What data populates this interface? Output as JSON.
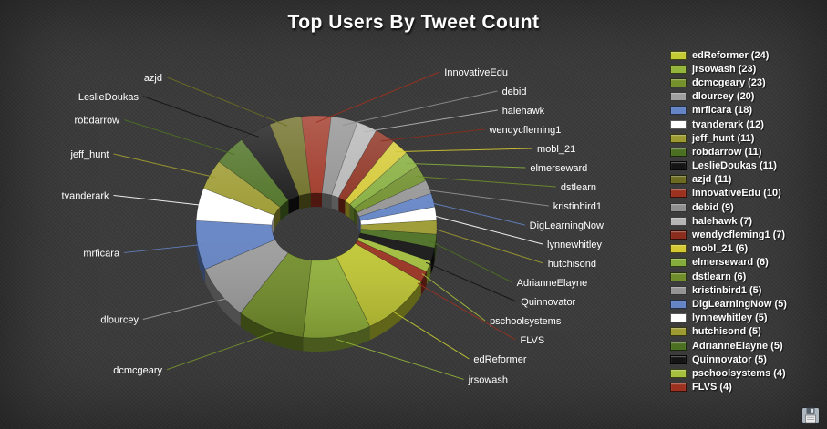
{
  "title": "Top Users By Tweet Count",
  "colors": {
    "background": "#3b3b3b",
    "title_text": "#ffffff",
    "label_text": "#ffffff"
  },
  "icons": {
    "save": "floppy-disk-icon"
  },
  "chart_data": {
    "type": "pie",
    "variant": "3d-donut",
    "title": "Top Users By Tweet Count",
    "legend_position": "right",
    "legend_format": "{label} ({value})",
    "direction": "clockwise",
    "start_angle_deg": 29.5,
    "total": 253,
    "slices": [
      {
        "label": "edReformer",
        "value": 24,
        "color": "#c3ca33"
      },
      {
        "label": "jrsowash",
        "value": 23,
        "color": "#94b53c"
      },
      {
        "label": "dcmcgeary",
        "value": 23,
        "color": "#75912c"
      },
      {
        "label": "dlourcey",
        "value": 20,
        "color": "#9e9e9e"
      },
      {
        "label": "mrficara",
        "value": 18,
        "color": "#6484c5"
      },
      {
        "label": "tvanderark",
        "value": 12,
        "color": "#ffffff"
      },
      {
        "label": "jeff_hunt",
        "value": 11,
        "color": "#9c9a30"
      },
      {
        "label": "robdarrow",
        "value": 11,
        "color": "#4c7022"
      },
      {
        "label": "LeslieDoukas",
        "value": 11,
        "color": "#141414"
      },
      {
        "label": "azjd",
        "value": 11,
        "color": "#6b6b22"
      },
      {
        "label": "InnovativeEdu",
        "value": 10,
        "color": "#9c3120"
      },
      {
        "label": "debid",
        "value": 9,
        "color": "#8f8f8f"
      },
      {
        "label": "halehawk",
        "value": 7,
        "color": "#b5b5b5"
      },
      {
        "label": "wendycfleming1",
        "value": 7,
        "color": "#8a2d1c"
      },
      {
        "label": "mobl_21",
        "value": 6,
        "color": "#d4c832"
      },
      {
        "label": "elmerseward",
        "value": 6,
        "color": "#85ad3c"
      },
      {
        "label": "dstlearn",
        "value": 6,
        "color": "#6f8e2b"
      },
      {
        "label": "kristinbird1",
        "value": 5,
        "color": "#949494"
      },
      {
        "label": "DigLearningNow",
        "value": 5,
        "color": "#6484c5"
      },
      {
        "label": "lynnewhitley",
        "value": 5,
        "color": "#ffffff"
      },
      {
        "label": "hutchisond",
        "value": 5,
        "color": "#9c9a30"
      },
      {
        "label": "AdrianneElayne",
        "value": 5,
        "color": "#4c7022"
      },
      {
        "label": "Quinnovator",
        "value": 5,
        "color": "#141414"
      },
      {
        "label": "pschoolsystems",
        "value": 4,
        "color": "#a4c03c"
      },
      {
        "label": "FLVS",
        "value": 4,
        "color": "#9c3120"
      }
    ]
  }
}
